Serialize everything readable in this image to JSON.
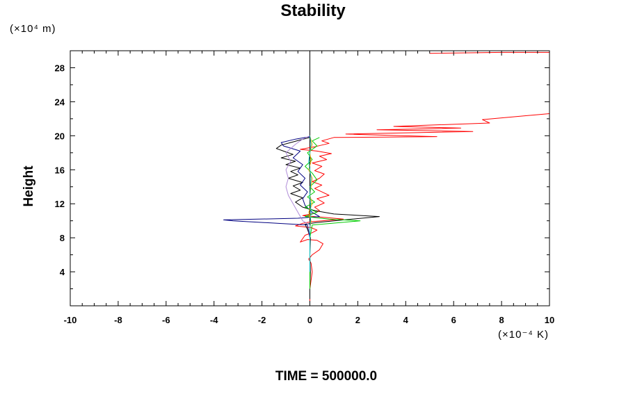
{
  "chart_data": {
    "type": "line",
    "title": "Stability",
    "xlabel": "",
    "ylabel": "Height",
    "x_unit": "(×10⁻⁴ K)",
    "y_unit": "(×10⁴ m)",
    "footer": "TIME = 500000.0",
    "xlim": [
      -10,
      10
    ],
    "ylim": [
      0,
      30
    ],
    "x_ticks": [
      -10,
      -8,
      -6,
      -4,
      -2,
      0,
      2,
      4,
      6,
      8,
      10
    ],
    "y_ticks": [
      4,
      8,
      12,
      16,
      20,
      24,
      28
    ],
    "grid": false,
    "legend": "none",
    "series": [
      {
        "color": "#ff0000",
        "points": [
          [
            0,
            0.5
          ],
          [
            0,
            2
          ],
          [
            0.05,
            3
          ],
          [
            0.1,
            4
          ],
          [
            0.05,
            5
          ],
          [
            -0.05,
            5.5
          ],
          [
            0.1,
            6
          ],
          [
            0.4,
            6.6
          ],
          [
            0.55,
            7.3
          ],
          [
            0.3,
            7.7
          ],
          [
            -0.1,
            7.8
          ],
          [
            -0.4,
            7.5
          ],
          [
            -0.2,
            8.3
          ],
          [
            0.1,
            8.6
          ],
          [
            0.3,
            8.9
          ],
          [
            0.05,
            9.2
          ],
          [
            -0.6,
            9.4
          ],
          [
            -0.3,
            9.7
          ],
          [
            0.1,
            9.9
          ],
          [
            1.4,
            10.2
          ],
          [
            0.6,
            10.4
          ],
          [
            -0.3,
            10.6
          ],
          [
            0.2,
            10.9
          ],
          [
            0.4,
            11.2
          ],
          [
            0.2,
            11.6
          ],
          [
            0.6,
            12.1
          ],
          [
            0.3,
            12.6
          ],
          [
            0.8,
            13
          ],
          [
            0.5,
            13.4
          ],
          [
            0.2,
            13.8
          ],
          [
            0.5,
            14.2
          ],
          [
            0.1,
            14.6
          ],
          [
            0.4,
            15
          ],
          [
            0.6,
            15.5
          ],
          [
            0.2,
            15.9
          ],
          [
            0.5,
            16.4
          ],
          [
            0.1,
            16.8
          ],
          [
            0.7,
            17.2
          ],
          [
            0.4,
            17.6
          ],
          [
            0.9,
            17.9
          ],
          [
            0.3,
            18.2
          ],
          [
            -0.4,
            18.4
          ],
          [
            0.2,
            18.7
          ],
          [
            0.8,
            19.1
          ],
          [
            0.5,
            19.4
          ],
          [
            1,
            19.8
          ],
          [
            5.3,
            19.9
          ],
          [
            1.5,
            20.2
          ],
          [
            6.8,
            20.5
          ],
          [
            2.8,
            20.7
          ],
          [
            6.3,
            20.9
          ],
          [
            3.5,
            21.1
          ],
          [
            7.5,
            21.5
          ],
          [
            7.2,
            21.9
          ],
          [
            10,
            22.6
          ]
        ]
      },
      {
        "color": "#ff0000",
        "points": [
          [
            5,
            29.7
          ],
          [
            8,
            29.8
          ],
          [
            10,
            29.8
          ]
        ]
      },
      {
        "color": "#000000",
        "points": [
          [
            0,
            0.8
          ],
          [
            0,
            2
          ],
          [
            0.02,
            4
          ],
          [
            0,
            6
          ],
          [
            0.02,
            8
          ],
          [
            -0.1,
            9
          ],
          [
            -0.2,
            9.6
          ],
          [
            0.3,
            9.8
          ],
          [
            2.9,
            10.5
          ],
          [
            1,
            10.8
          ],
          [
            0.2,
            11.2
          ],
          [
            -0.3,
            11.6
          ],
          [
            -0.6,
            12.2
          ],
          [
            -0.3,
            12.7
          ],
          [
            -0.8,
            13.2
          ],
          [
            -0.4,
            13.6
          ],
          [
            -0.7,
            14.1
          ],
          [
            -0.3,
            14.5
          ],
          [
            -0.9,
            15
          ],
          [
            -0.5,
            15.4
          ],
          [
            -0.8,
            15.8
          ],
          [
            -0.4,
            16.2
          ],
          [
            -1,
            16.6
          ],
          [
            -0.6,
            17
          ],
          [
            -1.2,
            17.4
          ],
          [
            -0.7,
            17.8
          ],
          [
            -1.1,
            18.2
          ],
          [
            -1.4,
            18.5
          ],
          [
            -1.2,
            18.9
          ],
          [
            -0.8,
            19.2
          ],
          [
            -0.4,
            19.5
          ],
          [
            0,
            19.8
          ]
        ]
      },
      {
        "color": "#000080",
        "points": [
          [
            0,
            8
          ],
          [
            -0.1,
            9.5
          ],
          [
            -3.2,
            10
          ],
          [
            -3.6,
            10.1
          ],
          [
            -0.5,
            10.3
          ],
          [
            0.4,
            10.5
          ],
          [
            0.1,
            11
          ],
          [
            -0.2,
            11.8
          ],
          [
            -0.3,
            12.6
          ],
          [
            -0.1,
            13.4
          ],
          [
            -0.4,
            14.2
          ],
          [
            -0.2,
            15
          ],
          [
            -0.5,
            15.8
          ],
          [
            -0.3,
            16.6
          ],
          [
            -0.7,
            17.4
          ],
          [
            -0.4,
            18.2
          ],
          [
            -1.1,
            18.8
          ],
          [
            -1.2,
            19.2
          ],
          [
            -0.6,
            19.6
          ],
          [
            0,
            19.9
          ]
        ]
      },
      {
        "color": "#00cc00",
        "points": [
          [
            0,
            2
          ],
          [
            0,
            8
          ],
          [
            0.1,
            9.5
          ],
          [
            2.1,
            10
          ],
          [
            0.8,
            10.2
          ],
          [
            -0.2,
            10.5
          ],
          [
            0.3,
            11
          ],
          [
            -0.2,
            11.6
          ],
          [
            0.2,
            12.2
          ],
          [
            -0.1,
            12.8
          ],
          [
            0.2,
            13.4
          ],
          [
            0,
            14
          ],
          [
            0.3,
            14.8
          ],
          [
            0.1,
            15.6
          ],
          [
            -0.2,
            16.4
          ],
          [
            0.1,
            17.2
          ],
          [
            -0.1,
            18
          ],
          [
            0.3,
            18.8
          ],
          [
            0.1,
            19.4
          ],
          [
            0.4,
            19.8
          ]
        ]
      },
      {
        "color": "#b08cd8",
        "points": [
          [
            0,
            8
          ],
          [
            0,
            9.5
          ],
          [
            -0.3,
            10
          ],
          [
            -0.5,
            11
          ],
          [
            -0.7,
            12
          ],
          [
            -0.9,
            13
          ],
          [
            -1,
            14
          ],
          [
            -0.9,
            15
          ],
          [
            -1,
            16
          ],
          [
            -0.8,
            17
          ],
          [
            -1,
            18
          ],
          [
            -0.6,
            19
          ],
          [
            -0.3,
            19.6
          ],
          [
            0,
            20
          ]
        ]
      },
      {
        "color": "#ffa500",
        "points": [
          [
            0,
            4
          ],
          [
            0,
            9
          ],
          [
            0.05,
            10
          ],
          [
            -0.05,
            11
          ],
          [
            0.1,
            12
          ],
          [
            0,
            13
          ],
          [
            0.05,
            14
          ],
          [
            0.1,
            15
          ],
          [
            -0.05,
            16
          ],
          [
            0.05,
            17
          ],
          [
            0,
            18
          ],
          [
            0.1,
            19
          ],
          [
            0,
            20
          ]
        ]
      },
      {
        "color": "#00bbbb",
        "points": [
          [
            0,
            4
          ],
          [
            0,
            9
          ],
          [
            0.05,
            11
          ],
          [
            0,
            13
          ],
          [
            0.05,
            15
          ],
          [
            -0.05,
            17
          ],
          [
            0.05,
            19
          ],
          [
            0,
            20
          ]
        ]
      }
    ]
  }
}
